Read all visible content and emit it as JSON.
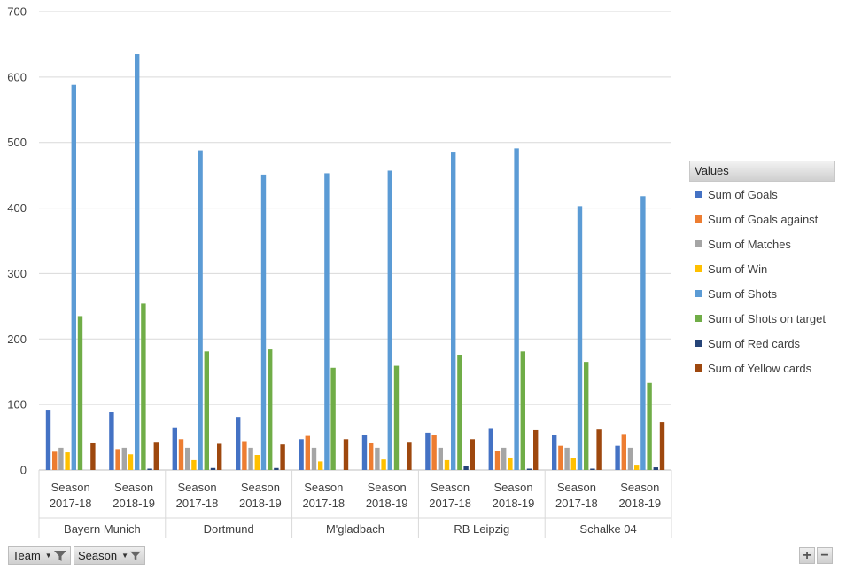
{
  "chart_data": {
    "type": "bar",
    "title": "",
    "xlabel": "",
    "ylabel": "",
    "ylim": [
      0,
      700
    ],
    "yticks": [
      0,
      100,
      200,
      300,
      400,
      500,
      600,
      700
    ],
    "grid": true,
    "legend_placement": "right",
    "groups": [
      {
        "name": "Bayern Munich",
        "seasons": [
          "Season 2017-18",
          "Season 2018-19"
        ]
      },
      {
        "name": "Dortmund",
        "seasons": [
          "Season 2017-18",
          "Season 2018-19"
        ]
      },
      {
        "name": "M'gladbach",
        "seasons": [
          "Season 2017-18",
          "Season 2018-19"
        ]
      },
      {
        "name": "RB Leipzig",
        "seasons": [
          "Season 2017-18",
          "Season 2018-19"
        ]
      },
      {
        "name": "Schalke 04",
        "seasons": [
          "Season 2017-18",
          "Season 2018-19"
        ]
      }
    ],
    "categories": [
      "Bayern Munich Season 2017-18",
      "Bayern Munich Season 2018-19",
      "Dortmund Season 2017-18",
      "Dortmund Season 2018-19",
      "M'gladbach Season 2017-18",
      "M'gladbach Season 2018-19",
      "RB Leipzig Season 2017-18",
      "RB Leipzig Season 2018-19",
      "Schalke 04 Season 2017-18",
      "Schalke 04 Season 2018-19"
    ],
    "series": [
      {
        "name": "Sum of Goals",
        "color": "#4472C4",
        "values": [
          92,
          88,
          64,
          81,
          47,
          54,
          57,
          63,
          53,
          37
        ]
      },
      {
        "name": "Sum of Goals against",
        "color": "#ED7D31",
        "values": [
          28,
          32,
          47,
          44,
          52,
          42,
          53,
          29,
          37,
          55
        ]
      },
      {
        "name": "Sum of Matches",
        "color": "#A5A5A5",
        "values": [
          34,
          34,
          34,
          34,
          34,
          34,
          34,
          34,
          34,
          34
        ]
      },
      {
        "name": "Sum of Win",
        "color": "#FFC000",
        "values": [
          27,
          24,
          15,
          23,
          13,
          16,
          15,
          19,
          18,
          8
        ]
      },
      {
        "name": "Sum of Shots",
        "color": "#5B9BD5",
        "values": [
          588,
          635,
          488,
          451,
          453,
          457,
          486,
          491,
          403,
          418
        ]
      },
      {
        "name": "Sum of Shots on target",
        "color": "#70AD47",
        "values": [
          235,
          254,
          181,
          184,
          156,
          159,
          176,
          181,
          165,
          133
        ]
      },
      {
        "name": "Sum of Red cards",
        "color": "#264478",
        "values": [
          0,
          2,
          3,
          3,
          0,
          0,
          6,
          2,
          2,
          4
        ]
      },
      {
        "name": "Sum of Yellow cards",
        "color": "#9E480E",
        "values": [
          42,
          43,
          40,
          39,
          47,
          43,
          47,
          61,
          62,
          73
        ]
      }
    ]
  },
  "legend": {
    "title": "Values"
  },
  "controls": {
    "team_filter": "Team",
    "season_filter": "Season",
    "zoom_in": "+",
    "zoom_out": "−"
  }
}
